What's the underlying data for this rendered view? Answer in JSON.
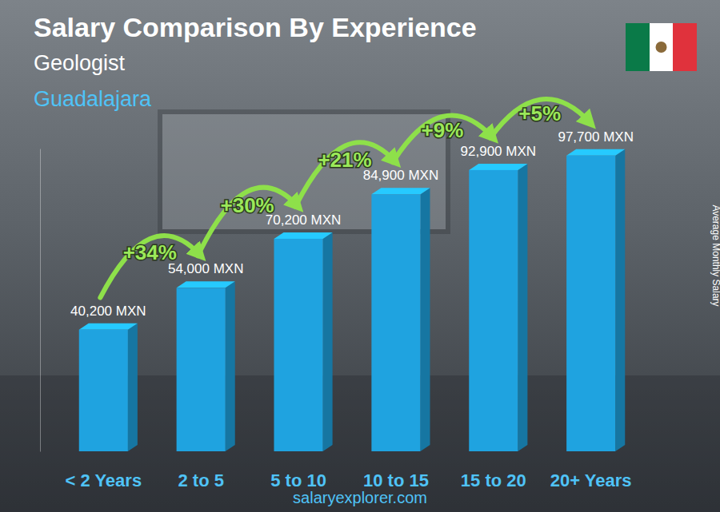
{
  "chart_data": {
    "type": "bar",
    "title": "Salary Comparison By Experience",
    "subtitle": "Geologist",
    "location": "Guadalajara",
    "y_label": "Average Monthly Salary",
    "source": "salaryexplorer.com",
    "categories": [
      "< 2 Years",
      "2 to 5",
      "5 to 10",
      "10 to 15",
      "15 to 20",
      "20+ Years"
    ],
    "values": [
      40200,
      54000,
      70200,
      84900,
      92900,
      97700
    ],
    "value_labels": [
      "40,200 MXN",
      "54,000 MXN",
      "70,200 MXN",
      "84,900 MXN",
      "92,900 MXN",
      "97,700 MXN"
    ],
    "annotations": [
      "+34%",
      "+30%",
      "+21%",
      "+9%",
      "+5%"
    ],
    "color": "#1fa3e0",
    "ylim": [
      0,
      100000
    ],
    "grid": false,
    "data_labels": true,
    "tick_labels": "x"
  }
}
